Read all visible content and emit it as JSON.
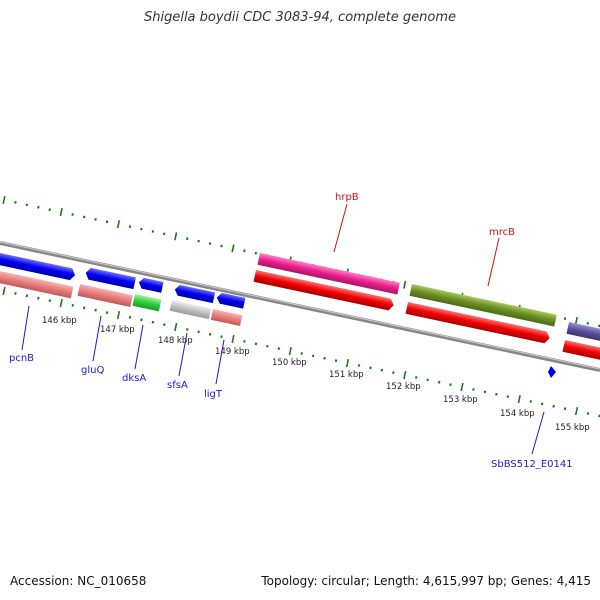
{
  "title": "Shigella boydii CDC 3083-94, complete genome",
  "footer": {
    "accession": "Accession: NC_010658",
    "summary": "Topology: circular; Length: 4,615,997 bp; Genes: 4,415"
  },
  "scale_labels": [
    "146 kbp",
    "147 kbp",
    "148 kbp",
    "149 kbp",
    "150 kbp",
    "151 kbp",
    "152 kbp",
    "153 kbp",
    "154 kbp",
    "155 kbp"
  ],
  "gene_labels": {
    "pcnB": "pcnB",
    "gluQ": "gluQ",
    "dksA": "dksA",
    "sfsA": "sfsA",
    "ligT": "ligT",
    "hrpB": "hrpB",
    "mrcB": "mrcB",
    "SbBS512_E0141": "SbBS512_E0141"
  },
  "colors": {
    "forward_cds": "#0000ee",
    "reverse_cds": "#ee0000",
    "forward_light": "#e87c7c",
    "hrpB": "#e8208e",
    "mrcB": "#6b8e23",
    "dksA": "#2fcf3a",
    "purple": "#5a4f9a",
    "grey": "#c0c0c0",
    "backbone": "#888888",
    "ticks": "#1a7a1a",
    "label_blue": "#1a1acc",
    "label_red": "#cc1111"
  }
}
